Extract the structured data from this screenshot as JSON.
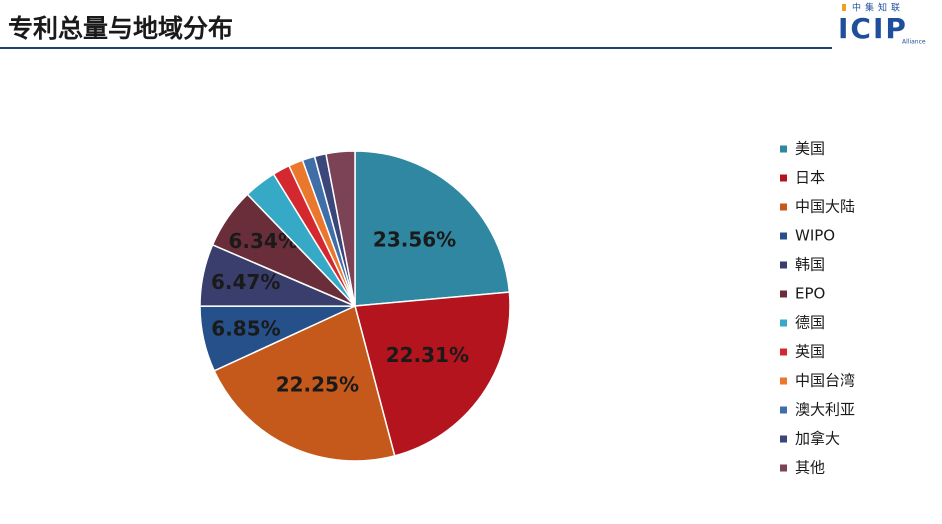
{
  "header": {
    "title": "专利总量与地域分布",
    "logo": {
      "brand": "中集知联",
      "text": "ICIP",
      "sub": "Alliance"
    }
  },
  "chart_data": {
    "type": "pie",
    "categories": [
      "美国",
      "日本",
      "中国大陆",
      "WIPO",
      "韩国",
      "EPO",
      "德国",
      "英国",
      "中国台湾",
      "澳大利亚",
      "加拿大",
      "其他"
    ],
    "values": [
      23.56,
      22.31,
      22.25,
      6.85,
      6.47,
      6.34,
      3.4,
      1.8,
      1.5,
      1.3,
      1.2,
      3.0
    ],
    "value_labels": [
      "23.56%",
      "22.31%",
      "22.25%",
      "6.85%",
      "6.47%",
      "6.34%",
      null,
      null,
      null,
      null,
      null,
      null
    ],
    "colors": [
      "#2f87a1",
      "#b3141d",
      "#c5591b",
      "#25508a",
      "#3a3e6c",
      "#6a2e3a",
      "#35a9c5",
      "#d3282f",
      "#ea772c",
      "#3f6ea8",
      "#3b467a",
      "#7c4256"
    ],
    "legend": "right"
  }
}
